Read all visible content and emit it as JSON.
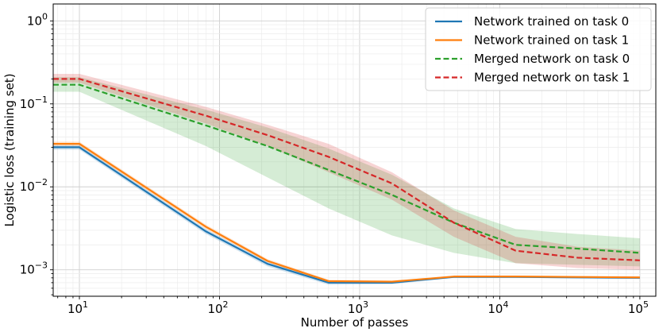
{
  "chart_data": {
    "type": "line",
    "title": "",
    "xlabel": "Number of passes",
    "ylabel": "Logistic loss (training set)",
    "xscale": "log",
    "yscale": "log",
    "xlim": [
      6.5,
      130000
    ],
    "ylim": [
      0.00048,
      1.6
    ],
    "grid": true,
    "legend_position": "top-right",
    "x_ticks": [
      {
        "value": 10,
        "base": "10",
        "exp": "1"
      },
      {
        "value": 100,
        "base": "10",
        "exp": "2"
      },
      {
        "value": 1000,
        "base": "10",
        "exp": "3"
      },
      {
        "value": 10000,
        "base": "10",
        "exp": "4"
      },
      {
        "value": 100000,
        "base": "10",
        "exp": "5"
      }
    ],
    "y_ticks": [
      {
        "value": 0.001,
        "base": "10",
        "exp": "−3"
      },
      {
        "value": 0.01,
        "base": "10",
        "exp": "−2"
      },
      {
        "value": 0.1,
        "base": "10",
        "exp": "−1"
      },
      {
        "value": 1,
        "base": "10",
        "exp": "0"
      }
    ],
    "x": [
      6.5,
      10,
      80,
      220,
      600,
      1700,
      4700,
      13000,
      36000,
      100000
    ],
    "series": [
      {
        "name": "Network trained on task 0",
        "color": "#1f77b4",
        "style": "solid",
        "values": [
          0.03,
          0.03,
          0.0029,
          0.00118,
          0.0007,
          0.0007,
          0.00082,
          0.00082,
          0.00081,
          0.0008
        ],
        "band_low": [
          0.028,
          0.028,
          0.0027,
          0.0011,
          0.00066,
          0.00067,
          0.0008,
          0.0008,
          0.00079,
          0.00078
        ],
        "band_high": [
          0.032,
          0.032,
          0.0031,
          0.00125,
          0.00073,
          0.00073,
          0.00084,
          0.00084,
          0.00083,
          0.00082
        ]
      },
      {
        "name": "Network trained on task 1",
        "color": "#ff7f0e",
        "style": "solid",
        "values": [
          0.033,
          0.033,
          0.0033,
          0.00128,
          0.00073,
          0.00072,
          0.00083,
          0.00083,
          0.00082,
          0.00081
        ],
        "band_low": [
          0.031,
          0.031,
          0.0031,
          0.00122,
          0.00071,
          0.0007,
          0.00081,
          0.00081,
          0.0008,
          0.00079
        ],
        "band_high": [
          0.035,
          0.035,
          0.0035,
          0.00135,
          0.00076,
          0.00074,
          0.00085,
          0.00085,
          0.00084,
          0.00083
        ]
      },
      {
        "name": "Merged network on task 0",
        "color": "#2ca02c",
        "style": "dashed",
        "values": [
          0.17,
          0.17,
          0.055,
          0.031,
          0.016,
          0.008,
          0.0037,
          0.002,
          0.0018,
          0.0016
        ],
        "band_low": [
          0.14,
          0.14,
          0.031,
          0.013,
          0.0055,
          0.0026,
          0.0016,
          0.0012,
          0.00115,
          0.0011
        ],
        "band_high": [
          0.21,
          0.21,
          0.085,
          0.052,
          0.029,
          0.014,
          0.0055,
          0.0031,
          0.0027,
          0.0024
        ]
      },
      {
        "name": "Merged network on task 1",
        "color": "#d62728",
        "style": "dashed",
        "values": [
          0.2,
          0.2,
          0.072,
          0.042,
          0.023,
          0.011,
          0.0037,
          0.0017,
          0.0014,
          0.0013
        ],
        "band_low": [
          0.18,
          0.18,
          0.058,
          0.031,
          0.015,
          0.007,
          0.0025,
          0.0012,
          0.00105,
          0.001
        ],
        "band_high": [
          0.23,
          0.23,
          0.092,
          0.056,
          0.033,
          0.015,
          0.0052,
          0.0025,
          0.0019,
          0.0017
        ]
      }
    ]
  }
}
